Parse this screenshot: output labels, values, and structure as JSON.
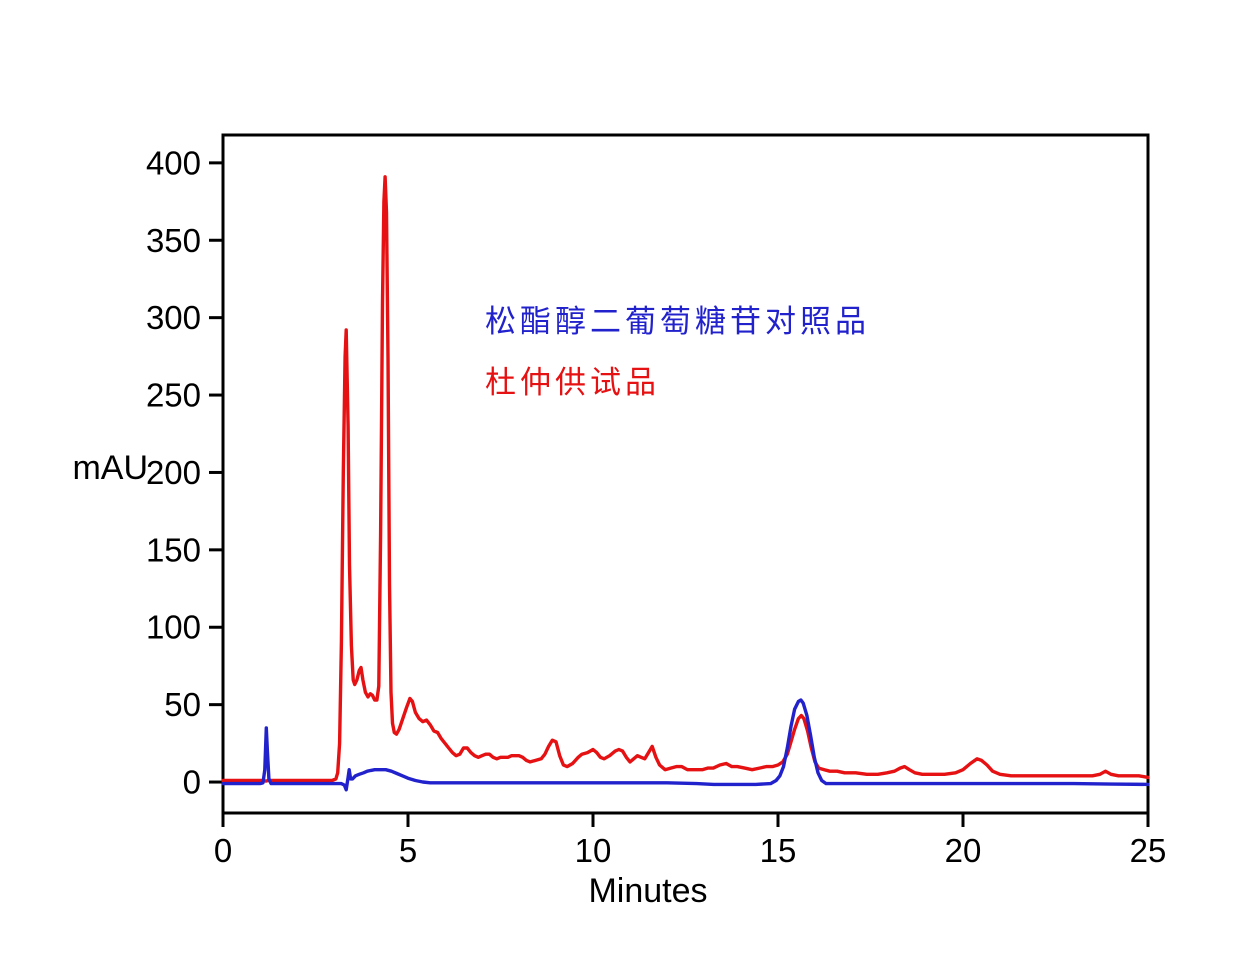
{
  "figure": {
    "background": "#ffffff",
    "frame_color": "#000000"
  },
  "chart_data": {
    "type": "line",
    "title": "",
    "xlabel": "Minutes",
    "ylabel": "mAU",
    "xlim": [
      0,
      25
    ],
    "ylim": [
      -20,
      418
    ],
    "xticks": [
      0,
      5,
      10,
      15,
      20,
      25
    ],
    "yticks": [
      0,
      50,
      100,
      150,
      200,
      250,
      300,
      350,
      400
    ],
    "grid": false,
    "frame": true,
    "legend_position": "inside-upper-center",
    "series": [
      {
        "name": "松酯醇二葡萄糖苷对照品",
        "role": "reference-standard",
        "color": "#2222cc",
        "points": [
          [
            0,
            -1
          ],
          [
            0.5,
            -1
          ],
          [
            1.0,
            -1
          ],
          [
            1.08,
            -0.5
          ],
          [
            1.13,
            8
          ],
          [
            1.17,
            35
          ],
          [
            1.2,
            20
          ],
          [
            1.24,
            2
          ],
          [
            1.3,
            -1
          ],
          [
            1.6,
            -1
          ],
          [
            2.0,
            -1
          ],
          [
            2.5,
            -1
          ],
          [
            3.0,
            -1
          ],
          [
            3.2,
            -1
          ],
          [
            3.28,
            -2
          ],
          [
            3.33,
            -5
          ],
          [
            3.38,
            3
          ],
          [
            3.41,
            8
          ],
          [
            3.45,
            2
          ],
          [
            3.5,
            2
          ],
          [
            3.58,
            4
          ],
          [
            3.68,
            5
          ],
          [
            3.8,
            6
          ],
          [
            3.9,
            7
          ],
          [
            4.0,
            7.5
          ],
          [
            4.1,
            8
          ],
          [
            4.25,
            8
          ],
          [
            4.4,
            8
          ],
          [
            4.55,
            7
          ],
          [
            4.7,
            5.5
          ],
          [
            4.85,
            4
          ],
          [
            5.0,
            2.5
          ],
          [
            5.2,
            1
          ],
          [
            5.4,
            0
          ],
          [
            5.6,
            -0.5
          ],
          [
            6.0,
            -0.5
          ],
          [
            6.5,
            -0.5
          ],
          [
            7.0,
            -0.5
          ],
          [
            8.0,
            -0.5
          ],
          [
            9.0,
            -0.5
          ],
          [
            10.0,
            -0.5
          ],
          [
            11.0,
            -0.5
          ],
          [
            12.0,
            -0.5
          ],
          [
            12.8,
            -1
          ],
          [
            13.26,
            -1.5
          ],
          [
            13.8,
            -1.5
          ],
          [
            14.4,
            -1.5
          ],
          [
            14.8,
            -1
          ],
          [
            14.95,
            1
          ],
          [
            15.05,
            4
          ],
          [
            15.15,
            10
          ],
          [
            15.25,
            22
          ],
          [
            15.35,
            36
          ],
          [
            15.45,
            47
          ],
          [
            15.55,
            52
          ],
          [
            15.62,
            53
          ],
          [
            15.68,
            51
          ],
          [
            15.78,
            43
          ],
          [
            15.88,
            30
          ],
          [
            15.98,
            16
          ],
          [
            16.08,
            6
          ],
          [
            16.18,
            1
          ],
          [
            16.3,
            -1
          ],
          [
            16.6,
            -1
          ],
          [
            17.0,
            -1
          ],
          [
            18.0,
            -1
          ],
          [
            19.0,
            -1
          ],
          [
            20.0,
            -1
          ],
          [
            21.0,
            -1
          ],
          [
            22.0,
            -1
          ],
          [
            23.0,
            -1
          ],
          [
            24.0,
            -1.3
          ],
          [
            25.0,
            -1.5
          ]
        ]
      },
      {
        "name": "杜仲供试品",
        "role": "test-sample",
        "color": "#e51112",
        "points": [
          [
            0,
            1
          ],
          [
            0.6,
            1
          ],
          [
            1.1,
            1
          ],
          [
            1.16,
            0.6
          ],
          [
            1.22,
            1
          ],
          [
            1.8,
            1
          ],
          [
            2.5,
            1
          ],
          [
            2.95,
            1
          ],
          [
            3.05,
            2
          ],
          [
            3.1,
            6
          ],
          [
            3.15,
            25
          ],
          [
            3.2,
            90
          ],
          [
            3.25,
            200
          ],
          [
            3.3,
            275
          ],
          [
            3.33,
            292
          ],
          [
            3.38,
            230
          ],
          [
            3.42,
            140
          ],
          [
            3.47,
            88
          ],
          [
            3.52,
            66
          ],
          [
            3.56,
            63
          ],
          [
            3.62,
            66
          ],
          [
            3.68,
            72
          ],
          [
            3.73,
            74
          ],
          [
            3.78,
            66
          ],
          [
            3.85,
            58
          ],
          [
            3.92,
            55
          ],
          [
            3.98,
            57
          ],
          [
            4.04,
            56
          ],
          [
            4.1,
            53
          ],
          [
            4.16,
            53
          ],
          [
            4.21,
            62
          ],
          [
            4.26,
            160
          ],
          [
            4.31,
            310
          ],
          [
            4.35,
            375
          ],
          [
            4.38,
            391
          ],
          [
            4.42,
            368
          ],
          [
            4.46,
            275
          ],
          [
            4.5,
            128
          ],
          [
            4.54,
            58
          ],
          [
            4.58,
            38
          ],
          [
            4.63,
            32
          ],
          [
            4.69,
            31
          ],
          [
            4.76,
            34
          ],
          [
            4.86,
            41
          ],
          [
            4.96,
            48
          ],
          [
            5.05,
            54
          ],
          [
            5.12,
            52
          ],
          [
            5.2,
            45
          ],
          [
            5.3,
            41
          ],
          [
            5.4,
            39
          ],
          [
            5.5,
            40
          ],
          [
            5.6,
            37
          ],
          [
            5.7,
            33
          ],
          [
            5.8,
            32
          ],
          [
            5.9,
            28
          ],
          [
            6.0,
            25
          ],
          [
            6.1,
            22
          ],
          [
            6.2,
            19
          ],
          [
            6.3,
            17
          ],
          [
            6.4,
            18
          ],
          [
            6.5,
            22
          ],
          [
            6.6,
            22
          ],
          [
            6.7,
            19
          ],
          [
            6.8,
            17
          ],
          [
            6.9,
            16
          ],
          [
            7.0,
            17
          ],
          [
            7.1,
            18
          ],
          [
            7.2,
            18
          ],
          [
            7.3,
            16
          ],
          [
            7.4,
            15
          ],
          [
            7.5,
            16
          ],
          [
            7.6,
            16
          ],
          [
            7.7,
            16
          ],
          [
            7.8,
            17
          ],
          [
            7.9,
            17
          ],
          [
            8.0,
            17
          ],
          [
            8.1,
            16
          ],
          [
            8.2,
            14
          ],
          [
            8.3,
            13
          ],
          [
            8.45,
            14
          ],
          [
            8.6,
            15
          ],
          [
            8.7,
            18
          ],
          [
            8.8,
            23
          ],
          [
            8.9,
            27
          ],
          [
            9.0,
            26
          ],
          [
            9.1,
            17
          ],
          [
            9.2,
            11
          ],
          [
            9.3,
            10
          ],
          [
            9.45,
            12
          ],
          [
            9.6,
            16
          ],
          [
            9.7,
            18
          ],
          [
            9.85,
            19
          ],
          [
            10.0,
            21
          ],
          [
            10.1,
            19
          ],
          [
            10.2,
            16
          ],
          [
            10.3,
            15
          ],
          [
            10.45,
            17
          ],
          [
            10.6,
            20
          ],
          [
            10.7,
            21
          ],
          [
            10.8,
            20
          ],
          [
            10.9,
            16
          ],
          [
            11.0,
            13
          ],
          [
            11.1,
            15
          ],
          [
            11.2,
            17
          ],
          [
            11.3,
            16
          ],
          [
            11.4,
            15
          ],
          [
            11.5,
            19
          ],
          [
            11.6,
            23
          ],
          [
            11.7,
            16
          ],
          [
            11.8,
            11
          ],
          [
            11.95,
            8
          ],
          [
            12.1,
            9
          ],
          [
            12.25,
            10
          ],
          [
            12.4,
            10
          ],
          [
            12.55,
            8
          ],
          [
            12.75,
            8
          ],
          [
            12.95,
            8
          ],
          [
            13.1,
            9
          ],
          [
            13.25,
            9
          ],
          [
            13.43,
            11
          ],
          [
            13.6,
            12
          ],
          [
            13.75,
            10
          ],
          [
            13.9,
            10
          ],
          [
            14.1,
            9
          ],
          [
            14.3,
            8
          ],
          [
            14.5,
            9
          ],
          [
            14.68,
            10
          ],
          [
            14.85,
            10
          ],
          [
            15.0,
            11
          ],
          [
            15.13,
            13
          ],
          [
            15.25,
            18
          ],
          [
            15.35,
            26
          ],
          [
            15.45,
            34
          ],
          [
            15.55,
            41
          ],
          [
            15.63,
            43
          ],
          [
            15.7,
            41
          ],
          [
            15.8,
            33
          ],
          [
            15.9,
            22
          ],
          [
            16.0,
            13
          ],
          [
            16.1,
            9
          ],
          [
            16.25,
            8
          ],
          [
            16.4,
            7
          ],
          [
            16.6,
            7
          ],
          [
            16.8,
            6
          ],
          [
            17.1,
            6
          ],
          [
            17.4,
            5
          ],
          [
            17.7,
            5
          ],
          [
            17.95,
            6
          ],
          [
            18.15,
            7
          ],
          [
            18.3,
            9
          ],
          [
            18.42,
            10
          ],
          [
            18.55,
            8
          ],
          [
            18.7,
            6
          ],
          [
            18.9,
            5
          ],
          [
            19.2,
            5
          ],
          [
            19.5,
            5
          ],
          [
            19.8,
            6
          ],
          [
            20.0,
            8
          ],
          [
            20.2,
            12
          ],
          [
            20.38,
            15
          ],
          [
            20.5,
            14
          ],
          [
            20.65,
            11
          ],
          [
            20.8,
            7
          ],
          [
            21.0,
            5
          ],
          [
            21.3,
            4
          ],
          [
            21.6,
            4
          ],
          [
            22.0,
            4
          ],
          [
            22.4,
            4
          ],
          [
            22.8,
            4
          ],
          [
            23.2,
            4
          ],
          [
            23.5,
            4
          ],
          [
            23.7,
            5
          ],
          [
            23.85,
            7
          ],
          [
            24.0,
            5
          ],
          [
            24.2,
            4
          ],
          [
            24.5,
            4
          ],
          [
            24.75,
            4
          ],
          [
            25.0,
            3
          ]
        ]
      }
    ]
  }
}
